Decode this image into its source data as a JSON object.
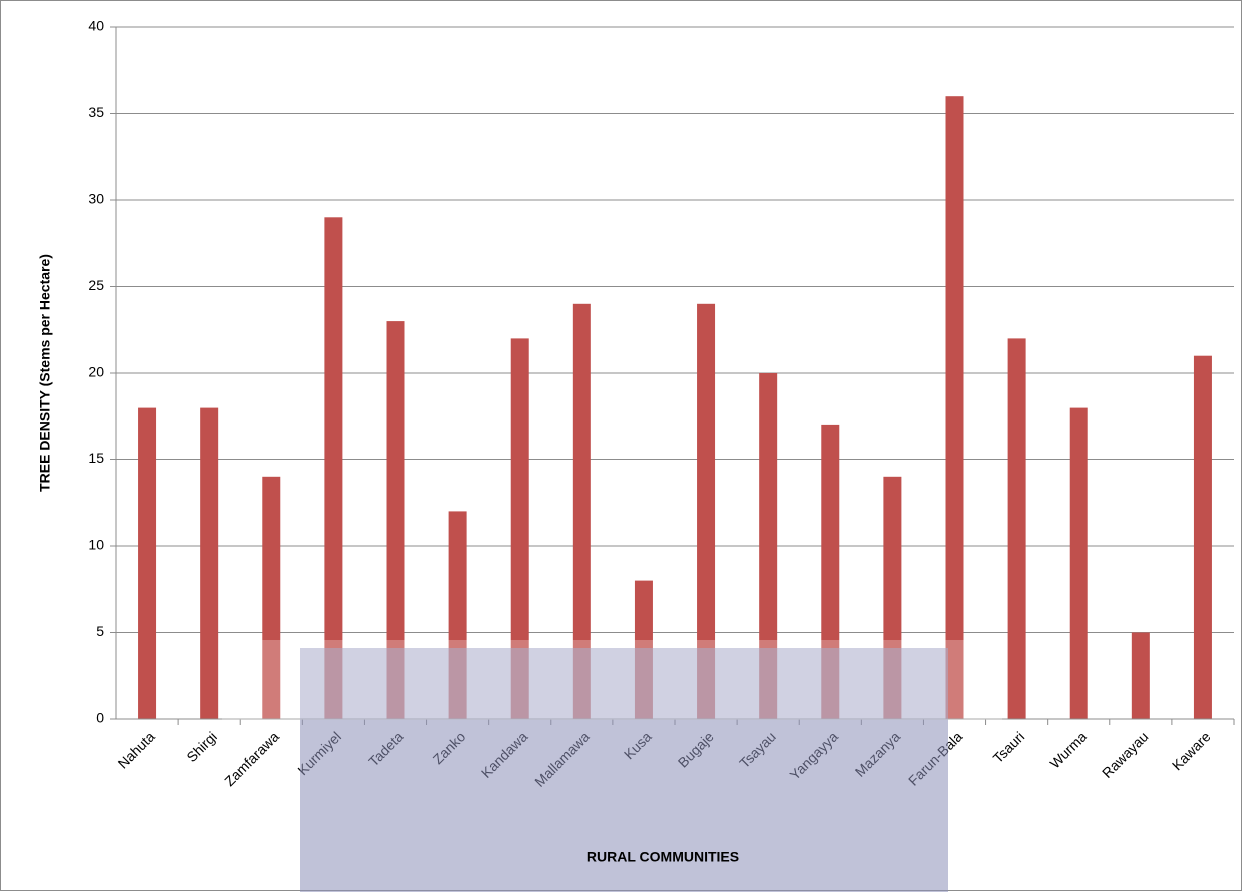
{
  "chart_data": {
    "type": "bar",
    "x_label": "RURAL COMMUNITIES",
    "y_label": "TREE DENSITY (Stems per Hectare)",
    "categories": [
      "Nahuta",
      "Shirgi",
      "Zamfarawa",
      "Kurmiyel",
      "Tadeta",
      "Zanko",
      "Kandawa",
      "Mallamawa",
      "Kusa",
      "Bugaje",
      "Tsayau",
      "Yangayya",
      "Mazanya",
      "Farun-Bala",
      "Tsauri",
      "Wurma",
      "Rawayau",
      "Kaware"
    ],
    "values": [
      18,
      18,
      14,
      29,
      23,
      12,
      22,
      24,
      8,
      24,
      20,
      17,
      14,
      36,
      22,
      18,
      5,
      21
    ],
    "color": "#c0504d",
    "ylim": [
      0,
      40
    ],
    "yticks": [
      0,
      5,
      10,
      15,
      20,
      25,
      30,
      35,
      40
    ],
    "grid": true
  }
}
